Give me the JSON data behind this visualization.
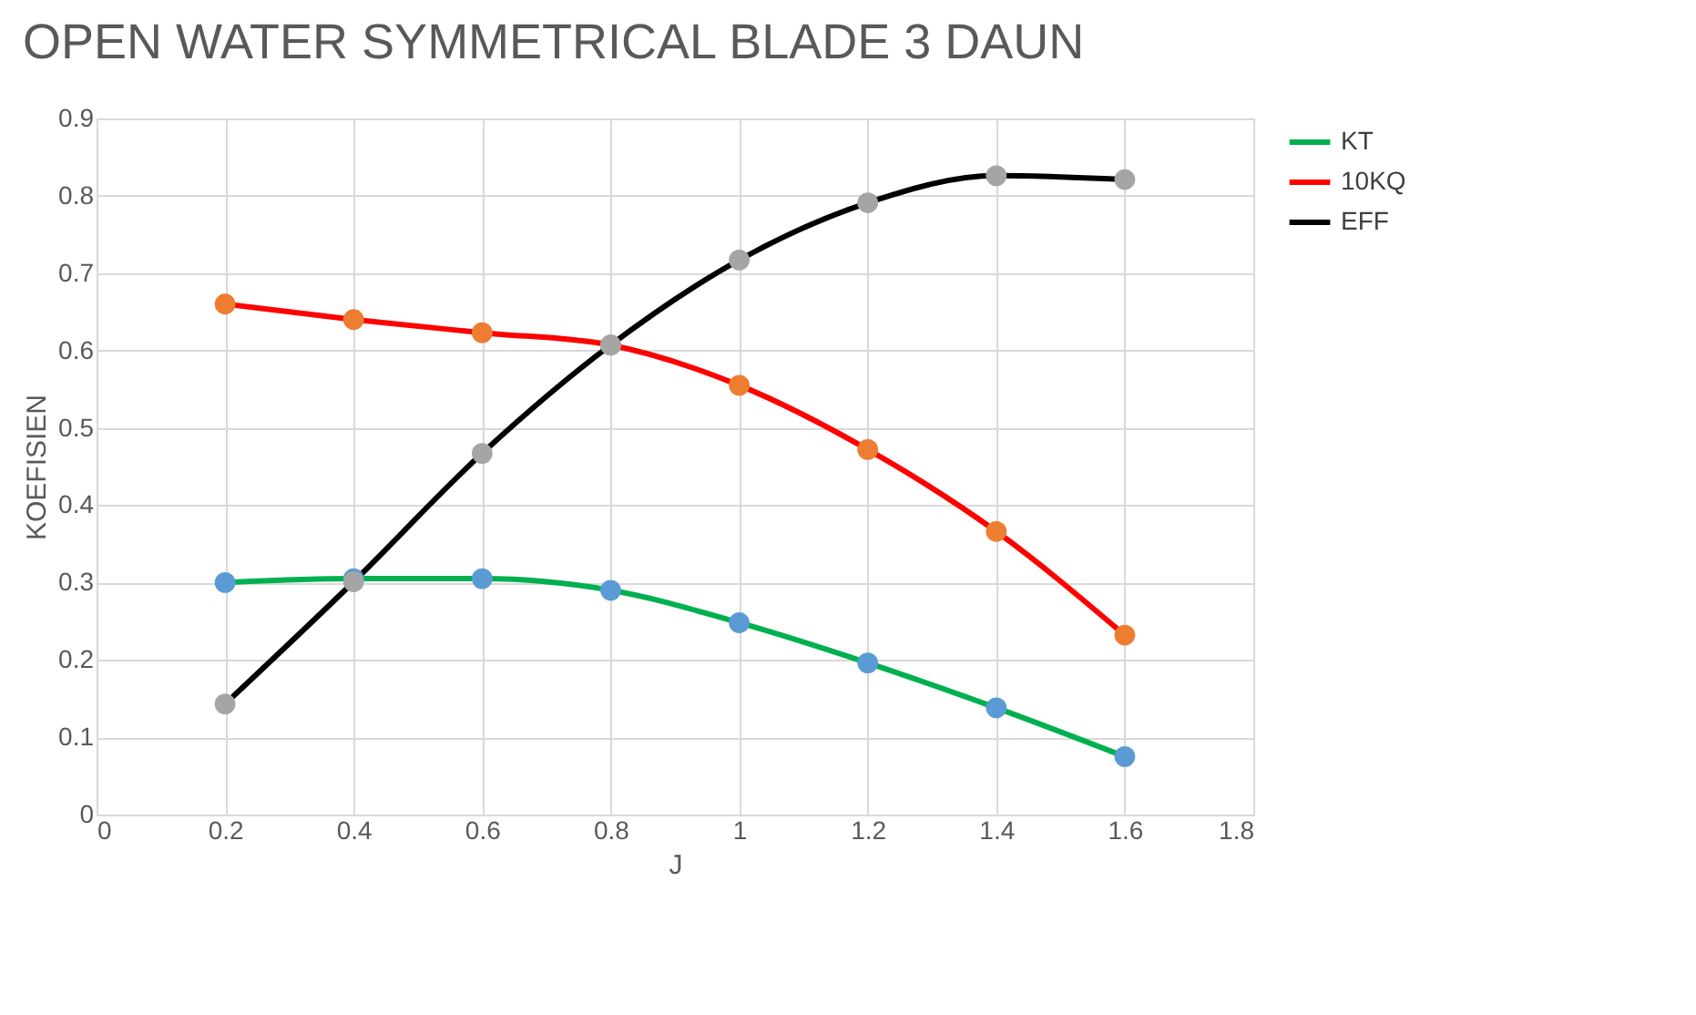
{
  "chart_data": {
    "type": "line",
    "title": "OPEN WATER SYMMETRICAL BLADE 3 DAUN",
    "xlabel": "J",
    "ylabel": "KOEFISIEN",
    "x": [
      0.2,
      0.4,
      0.6,
      0.8,
      1.0,
      1.2,
      1.4,
      1.6
    ],
    "series": [
      {
        "name": "KT",
        "color": "#00b050",
        "colors": [
          "#5b9bd5",
          "#5b9bd5",
          "#5b9bd5",
          "#5b9bd5",
          "#5b9bd5",
          "#5b9bd5",
          "#5b9bd5",
          "#5b9bd5"
        ],
        "values": [
          0.3,
          0.305,
          0.305,
          0.29,
          0.248,
          0.196,
          0.138,
          0.075
        ]
      },
      {
        "name": "10KQ",
        "color": "#ff0000",
        "colors": [
          "#ed7d31",
          "#ed7d31",
          "#ed7d31",
          "#ed7d31",
          "#ed7d31",
          "#ed7d31",
          "#ed7d31",
          "#ed7d31"
        ],
        "values": [
          0.66,
          0.64,
          0.623,
          0.607,
          0.555,
          0.472,
          0.366,
          0.232
        ]
      },
      {
        "name": "EFF",
        "color": "#000000",
        "colors": [
          "#a5a5a5",
          "#a5a5a5",
          "#a5a5a5",
          "#a5a5a5",
          "#a5a5a5",
          "#a5a5a5",
          "#a5a5a5",
          "#a5a5a5"
        ],
        "values": [
          0.143,
          0.301,
          0.467,
          0.607,
          0.717,
          0.791,
          0.826,
          0.821
        ]
      }
    ],
    "xlim": [
      0,
      1.8
    ],
    "xticks": [
      0,
      0.2,
      0.4,
      0.6,
      0.8,
      1,
      1.2,
      1.4,
      1.6,
      1.8
    ],
    "ylim": [
      0,
      0.9
    ],
    "yticks": [
      0,
      0.1,
      0.2,
      0.3,
      0.4,
      0.5,
      0.6,
      0.7,
      0.8,
      0.9
    ],
    "grid": true,
    "legend": "right",
    "marker": "circle",
    "line_style": "solid"
  }
}
